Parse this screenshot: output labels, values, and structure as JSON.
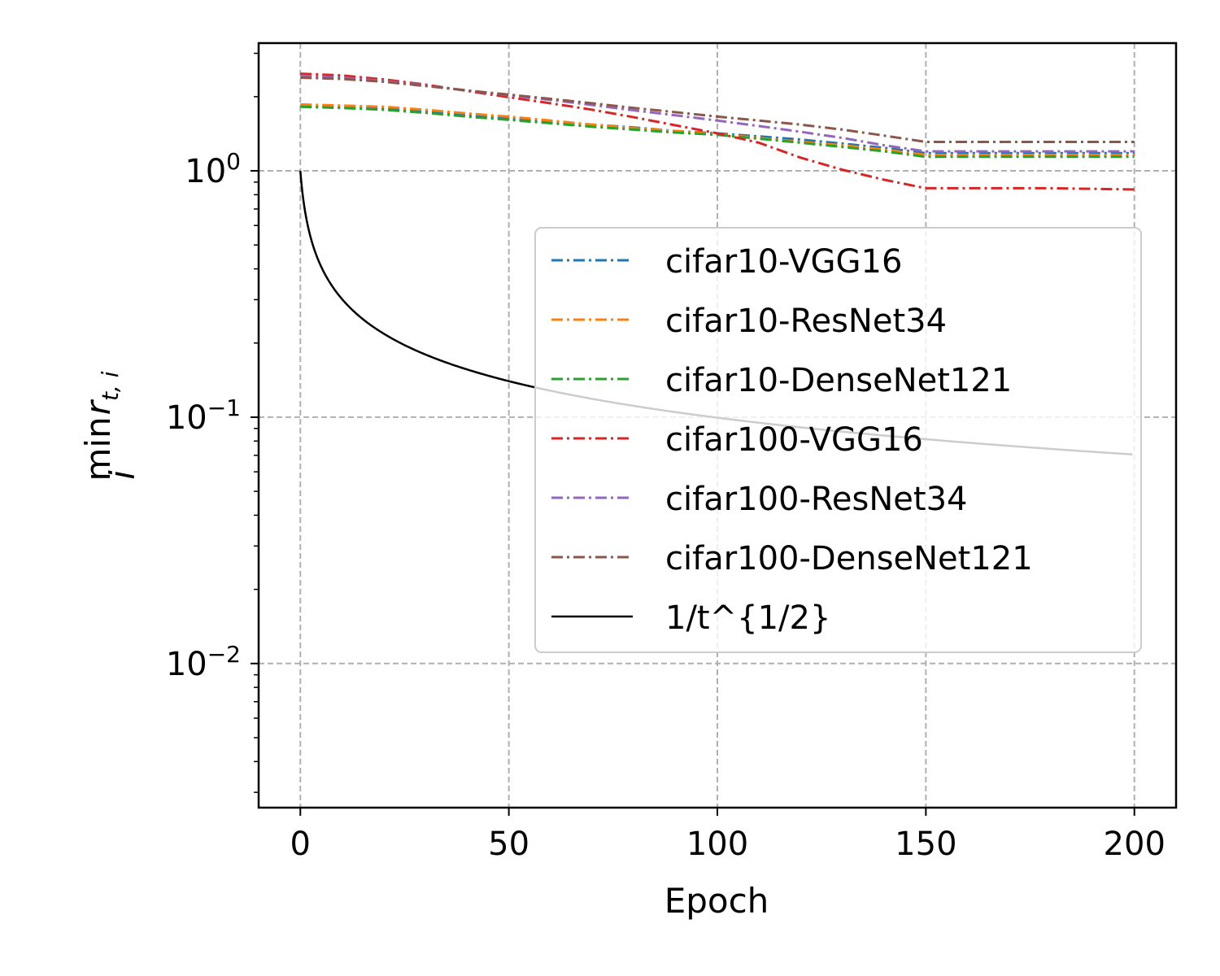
{
  "chart_data": {
    "type": "line",
    "xlabel": "Epoch",
    "ylabel": {
      "main": "min",
      "sub": "i",
      "var": "r",
      "var_sub": "t, i"
    },
    "xlim": [
      -10,
      210
    ],
    "ylim": [
      0.0026,
      3.3
    ],
    "yscale": "log",
    "xticks": [
      {
        "value": 0,
        "label": "0"
      },
      {
        "value": 50,
        "label": "50"
      },
      {
        "value": 100,
        "label": "100"
      },
      {
        "value": 150,
        "label": "150"
      },
      {
        "value": 200,
        "label": "200"
      }
    ],
    "yticks": [
      {
        "value": 1,
        "base": "10",
        "exp": "0"
      },
      {
        "value": 0.1,
        "base": "10",
        "exp": "−1"
      },
      {
        "value": 0.01,
        "base": "10",
        "exp": "−2"
      }
    ],
    "grid": true,
    "legend_position": "center-right",
    "series": [
      {
        "name": "cifar10-VGG16",
        "color": "#1f77b4",
        "style": "dashdot",
        "x": [
          0,
          10,
          20,
          30,
          40,
          50,
          60,
          70,
          80,
          90,
          100,
          110,
          120,
          130,
          140,
          150,
          160,
          170,
          180,
          190,
          200
        ],
        "y": [
          1.84,
          1.82,
          1.79,
          1.74,
          1.68,
          1.63,
          1.58,
          1.54,
          1.5,
          1.45,
          1.42,
          1.38,
          1.34,
          1.29,
          1.24,
          1.18,
          1.18,
          1.18,
          1.18,
          1.18,
          1.18
        ]
      },
      {
        "name": "cifar10-ResNet34",
        "color": "#ff7f0e",
        "style": "dashdot",
        "x": [
          0,
          10,
          20,
          30,
          40,
          50,
          60,
          70,
          80,
          90,
          100,
          110,
          120,
          130,
          140,
          150,
          160,
          170,
          180,
          190,
          200
        ],
        "y": [
          1.86,
          1.84,
          1.82,
          1.77,
          1.71,
          1.66,
          1.6,
          1.54,
          1.49,
          1.45,
          1.41,
          1.36,
          1.31,
          1.27,
          1.22,
          1.16,
          1.16,
          1.16,
          1.16,
          1.16,
          1.16
        ]
      },
      {
        "name": "cifar10-DenseNet121",
        "color": "#2ca02c",
        "style": "dashdot",
        "x": [
          0,
          10,
          20,
          30,
          40,
          50,
          60,
          70,
          80,
          90,
          100,
          110,
          120,
          130,
          140,
          150,
          160,
          170,
          180,
          190,
          200
        ],
        "y": [
          1.82,
          1.8,
          1.77,
          1.72,
          1.66,
          1.61,
          1.56,
          1.51,
          1.47,
          1.43,
          1.4,
          1.35,
          1.3,
          1.25,
          1.2,
          1.14,
          1.14,
          1.14,
          1.14,
          1.14,
          1.14
        ]
      },
      {
        "name": "cifar100-VGG16",
        "color": "#d62728",
        "style": "dashdot",
        "x": [
          0,
          10,
          20,
          30,
          40,
          50,
          60,
          70,
          80,
          90,
          100,
          110,
          120,
          130,
          140,
          150,
          160,
          170,
          180,
          190,
          200
        ],
        "y": [
          2.48,
          2.44,
          2.35,
          2.24,
          2.11,
          1.99,
          1.88,
          1.77,
          1.65,
          1.53,
          1.42,
          1.3,
          1.13,
          1.01,
          0.92,
          0.85,
          0.85,
          0.85,
          0.85,
          0.845,
          0.84
        ]
      },
      {
        "name": "cifar100-ResNet34",
        "color": "#9467bd",
        "style": "dashdot",
        "x": [
          0,
          10,
          20,
          30,
          40,
          50,
          60,
          70,
          80,
          90,
          100,
          110,
          120,
          130,
          140,
          150,
          160,
          170,
          180,
          190,
          200
        ],
        "y": [
          2.42,
          2.39,
          2.32,
          2.22,
          2.12,
          2.03,
          1.94,
          1.85,
          1.76,
          1.68,
          1.6,
          1.52,
          1.44,
          1.36,
          1.27,
          1.2,
          1.2,
          1.2,
          1.2,
          1.2,
          1.2
        ]
      },
      {
        "name": "cifar100-DenseNet121",
        "color": "#8c564b",
        "style": "dashdot",
        "x": [
          0,
          10,
          20,
          30,
          40,
          50,
          60,
          70,
          80,
          90,
          100,
          110,
          120,
          130,
          140,
          150,
          160,
          170,
          180,
          190,
          200
        ],
        "y": [
          2.39,
          2.36,
          2.3,
          2.21,
          2.12,
          2.04,
          1.96,
          1.88,
          1.8,
          1.73,
          1.66,
          1.6,
          1.54,
          1.47,
          1.39,
          1.31,
          1.31,
          1.31,
          1.31,
          1.31,
          1.31
        ]
      },
      {
        "name": "1/t^{1/2}",
        "color": "#000000",
        "style": "solid",
        "formula": "1/(t+1)^{1/2} sampled",
        "x": [],
        "y": []
      }
    ]
  }
}
